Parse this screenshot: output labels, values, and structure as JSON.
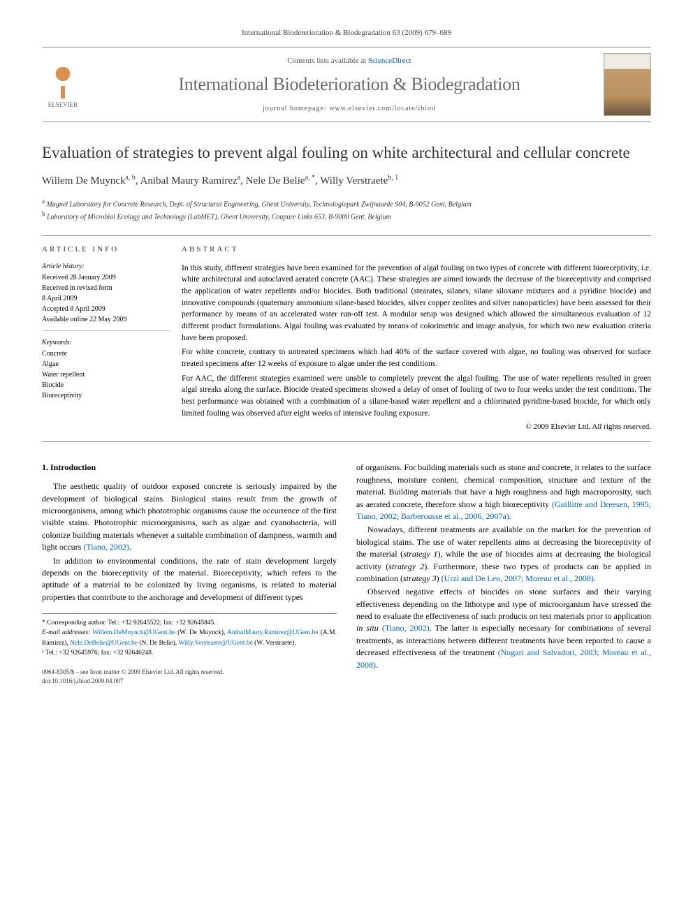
{
  "header_citation": "International Biodeterioration & Biodegradation 63 (2009) 679–689",
  "masthead": {
    "contents_prefix": "Contents lists available at ",
    "contents_link": "ScienceDirect",
    "journal_name": "International Biodeterioration & Biodegradation",
    "homepage_label": "journal homepage: www.elsevier.com/locate/ibiod",
    "publisher": "ELSEVIER"
  },
  "title": "Evaluation of strategies to prevent algal fouling on white architectural and cellular concrete",
  "authors": [
    {
      "name": "Willem De Muynck",
      "sup": "a, b"
    },
    {
      "name": "Anibal Maury Ramirez",
      "sup": "a"
    },
    {
      "name": "Nele De Belie",
      "sup": "a, *"
    },
    {
      "name": "Willy Verstraete",
      "sup": "b, 1"
    }
  ],
  "affiliations": [
    {
      "sup": "a",
      "text": "Magnel Laboratory for Concrete Research, Dept. of Structural Engineering, Ghent University, Technologiepark Zwijnaarde 904, B-9052 Gent, Belgium"
    },
    {
      "sup": "b",
      "text": "Laboratory of Microbial Ecology and Technology (LabMET), Ghent University, Coupure Links 653, B-9000 Gent, Belgium"
    }
  ],
  "article_info": {
    "header": "ARTICLE INFO",
    "history_label": "Article history:",
    "history": [
      "Received 28 January 2009",
      "Received in revised form",
      "8 April 2009",
      "Accepted 8 April 2009",
      "Available online 22 May 2009"
    ],
    "keywords_label": "Keywords:",
    "keywords": [
      "Concrete",
      "Algae",
      "Water repellent",
      "Biocide",
      "Bioreceptivity"
    ]
  },
  "abstract": {
    "header": "ABSTRACT",
    "p1": "In this study, different strategies have been examined for the prevention of algal fouling on two types of concrete with different bioreceptivity, i.e. white architectural and autoclaved aerated concrete (AAC). These strategies are aimed towards the decrease of the bioreceptivity and comprised the application of water repellents and/or biocides. Both traditional (stearates, silanes, silane siloxane mixtures and a pyridine biocide) and innovative compounds (quaternary ammonium silane-based biocides, silver copper zeolites and silver nanoparticles) have been assessed for their performance by means of an accelerated water run-off test. A modular setup was designed which allowed the simultaneous evaluation of 12 different product formulations. Algal fouling was evaluated by means of colorimetric and image analysis, for which two new evaluation criteria have been proposed.",
    "p2": "For white concrete, contrary to untreated specimens which had 40% of the surface covered with algae, no fouling was observed for surface treated specimens after 12 weeks of exposure to algae under the test conditions.",
    "p3": "For AAC, the different strategies examined were unable to completely prevent the algal fouling. The use of water repellents resulted in green algal streaks along the surface. Biocide treated specimens showed a delay of onset of fouling of two to four weeks under the test conditions. The best performance was obtained with a combination of a silane-based water repellent and a chlorinated pyridine-based biocide, for which only limited fouling was observed after eight weeks of intensive fouling exposure.",
    "copyright": "© 2009 Elsevier Ltd. All rights reserved."
  },
  "body": {
    "section_heading": "1. Introduction",
    "left_p1": "The aesthetic quality of outdoor exposed concrete is seriously impaired by the development of biological stains. Biological stains result from the growth of microorganisms, among which phototrophic organisms cause the occurrence of the first visible stains. Phototrophic microorganisms, such as algae and cyanobacteria, will colonize building materials whenever a suitable combination of dampness, warmth and light occurs ",
    "left_p1_cite": "(Tiano, 2002)",
    "left_p1_end": ".",
    "left_p2": "In addition to environmental conditions, the rate of stain development largely depends on the bioreceptivity of the material. Bioreceptivity, which refers to the aptitude of a material to be colonized by living organisms, is related to material properties that contribute to the anchorage and development of different types",
    "right_p1": "of organisms. For building materials such as stone and concrete, it relates to the surface roughness, moisture content, chemical composition, structure and texture of the material. Building materials that have a high roughness and high macroporosity, such as aerated concrete, therefore show a high bioreceptivity ",
    "right_p1_cite": "(Guillitte and Dreesen, 1995; Tiano, 2002; Barberousse et al., 2006, 2007a)",
    "right_p1_end": ".",
    "right_p2a": "Nowadays, different treatments are available on the market for the prevention of biological stains. The use of water repellents aims at decreasing the bioreceptivity of the material (",
    "right_p2_s1": "strategy 1",
    "right_p2b": "), while the use of biocides aims at decreasing the biological activity (",
    "right_p2_s2": "strategy 2",
    "right_p2c": "). Furthermore, these two types of products can be applied in combination (",
    "right_p2_s3": "strategy 3",
    "right_p2d": ") ",
    "right_p2_cite": "(Urzì and De Leo, 2007; Moreau et al., 2008)",
    "right_p2_end": ".",
    "right_p3a": "Observed negative effects of biocides on stone surfaces and their varying effectiveness depending on the lithotype and type of microorganism have stressed the need to evaluate the effectiveness of such products on test materials prior to application ",
    "right_p3_insitu": "in situ",
    "right_p3b": " ",
    "right_p3_cite1": "(Tiano, 2002)",
    "right_p3c": ". The latter is especially necessary for combinations of several treatments, as interactions between different treatments have been reported to cause a decreased effectiveness of the treatment ",
    "right_p3_cite2": "(Nugari and Salvadori, 2003; Moreau et al., 2008)",
    "right_p3_end": "."
  },
  "footnotes": {
    "corr": "* Corresponding author. Tel.: +32 92645522; fax: +32 92645845.",
    "email_label": "E-mail addresses:",
    "emails": [
      {
        "addr": "Willem.DeMuynck@UGent.be",
        "who": "(W. De Muynck)"
      },
      {
        "addr": "AnibalMaury.Ramirez@UGent.be",
        "who": "(A.M. Ramirez)"
      },
      {
        "addr": "Nele.DeBelie@UGent.be",
        "who": "(N. De Belie)"
      },
      {
        "addr": "Willy.Verstraete@UGent.be",
        "who": "(W. Verstraete)"
      }
    ],
    "note1": "¹ Tel.: +32 92645976; fax: +32 92646248."
  },
  "footer": {
    "line1": "0964-8305/$ – see front matter © 2009 Elsevier Ltd. All rights reserved.",
    "line2": "doi:10.1016/j.ibiod.2009.04.007"
  }
}
